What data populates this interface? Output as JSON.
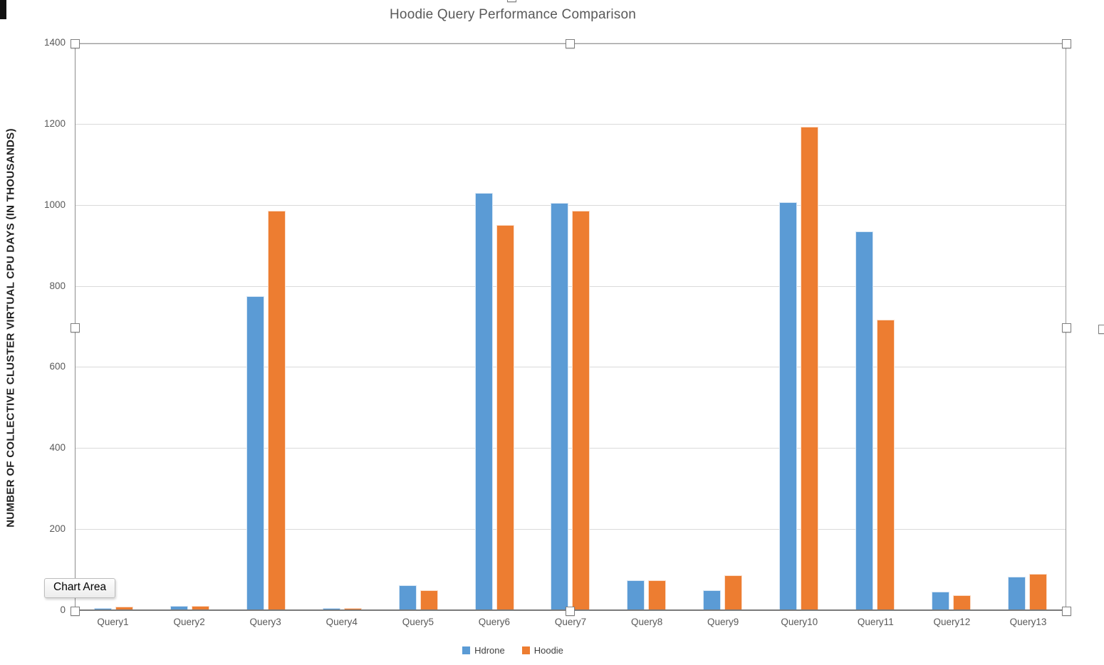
{
  "tooltip": {
    "label": "Chart Area"
  },
  "chart_data": {
    "type": "bar",
    "title": "Hoodie Query Performance Comparison",
    "xlabel": "",
    "ylabel": "NUMBER OF COLLECTIVE CLUSTER VIRTUAL CPU DAYS (IN THOUSANDS)",
    "categories": [
      "Query1",
      "Query2",
      "Query3",
      "Query4",
      "Query5",
      "Query6",
      "Query7",
      "Query8",
      "Query9",
      "Query10",
      "Query11",
      "Query12",
      "Query13"
    ],
    "series": [
      {
        "name": "Hdrone",
        "color": "#5B9BD5",
        "values": [
          5,
          10,
          775,
          5,
          62,
          1030,
          1005,
          74,
          50,
          1007,
          935,
          46,
          82
        ]
      },
      {
        "name": "Hoodie",
        "color": "#ED7D31",
        "values": [
          8,
          10,
          985,
          5,
          50,
          950,
          985,
          74,
          86,
          1192,
          716,
          37,
          90
        ]
      }
    ],
    "ylim": [
      0,
      1400
    ],
    "yticks": [
      0,
      200,
      400,
      600,
      800,
      1000,
      1200,
      1400
    ],
    "grid": true,
    "legend_position": "bottom-center",
    "selection_state": "plot-area-selected"
  },
  "colors": {
    "title_text": "#595959",
    "axis_text": "#595959",
    "gridline": "#dadada",
    "series_hdrone": "#5B9BD5",
    "series_hoodie": "#ED7D31"
  }
}
